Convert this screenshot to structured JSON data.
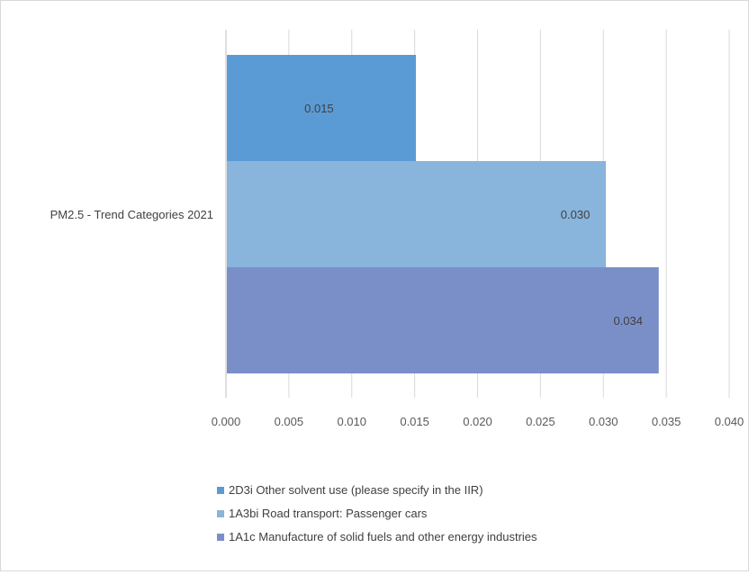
{
  "chart_data": {
    "type": "bar",
    "orientation": "horizontal",
    "category": "PM2.5 - Trend Categories  2021",
    "series": [
      {
        "name": "2D3i Other solvent use (please specify in the IIR)",
        "value": 0.0151,
        "label": "0.015",
        "color": "#5b9bd5"
      },
      {
        "name": "1A3bi Road transport: Passenger cars",
        "value": 0.0302,
        "label": "0.030",
        "color": "#89b4dc"
      },
      {
        "name": "1A1c Manufacture of solid fuels and other energy industries",
        "value": 0.0344,
        "label": "0.034",
        "color": "#7a8fc8"
      }
    ],
    "xlim": [
      0,
      0.04
    ],
    "xticks": [
      "0.000",
      "0.005",
      "0.010",
      "0.015",
      "0.020",
      "0.025",
      "0.030",
      "0.035",
      "0.040"
    ],
    "grid": true,
    "legend_position": "bottom"
  }
}
